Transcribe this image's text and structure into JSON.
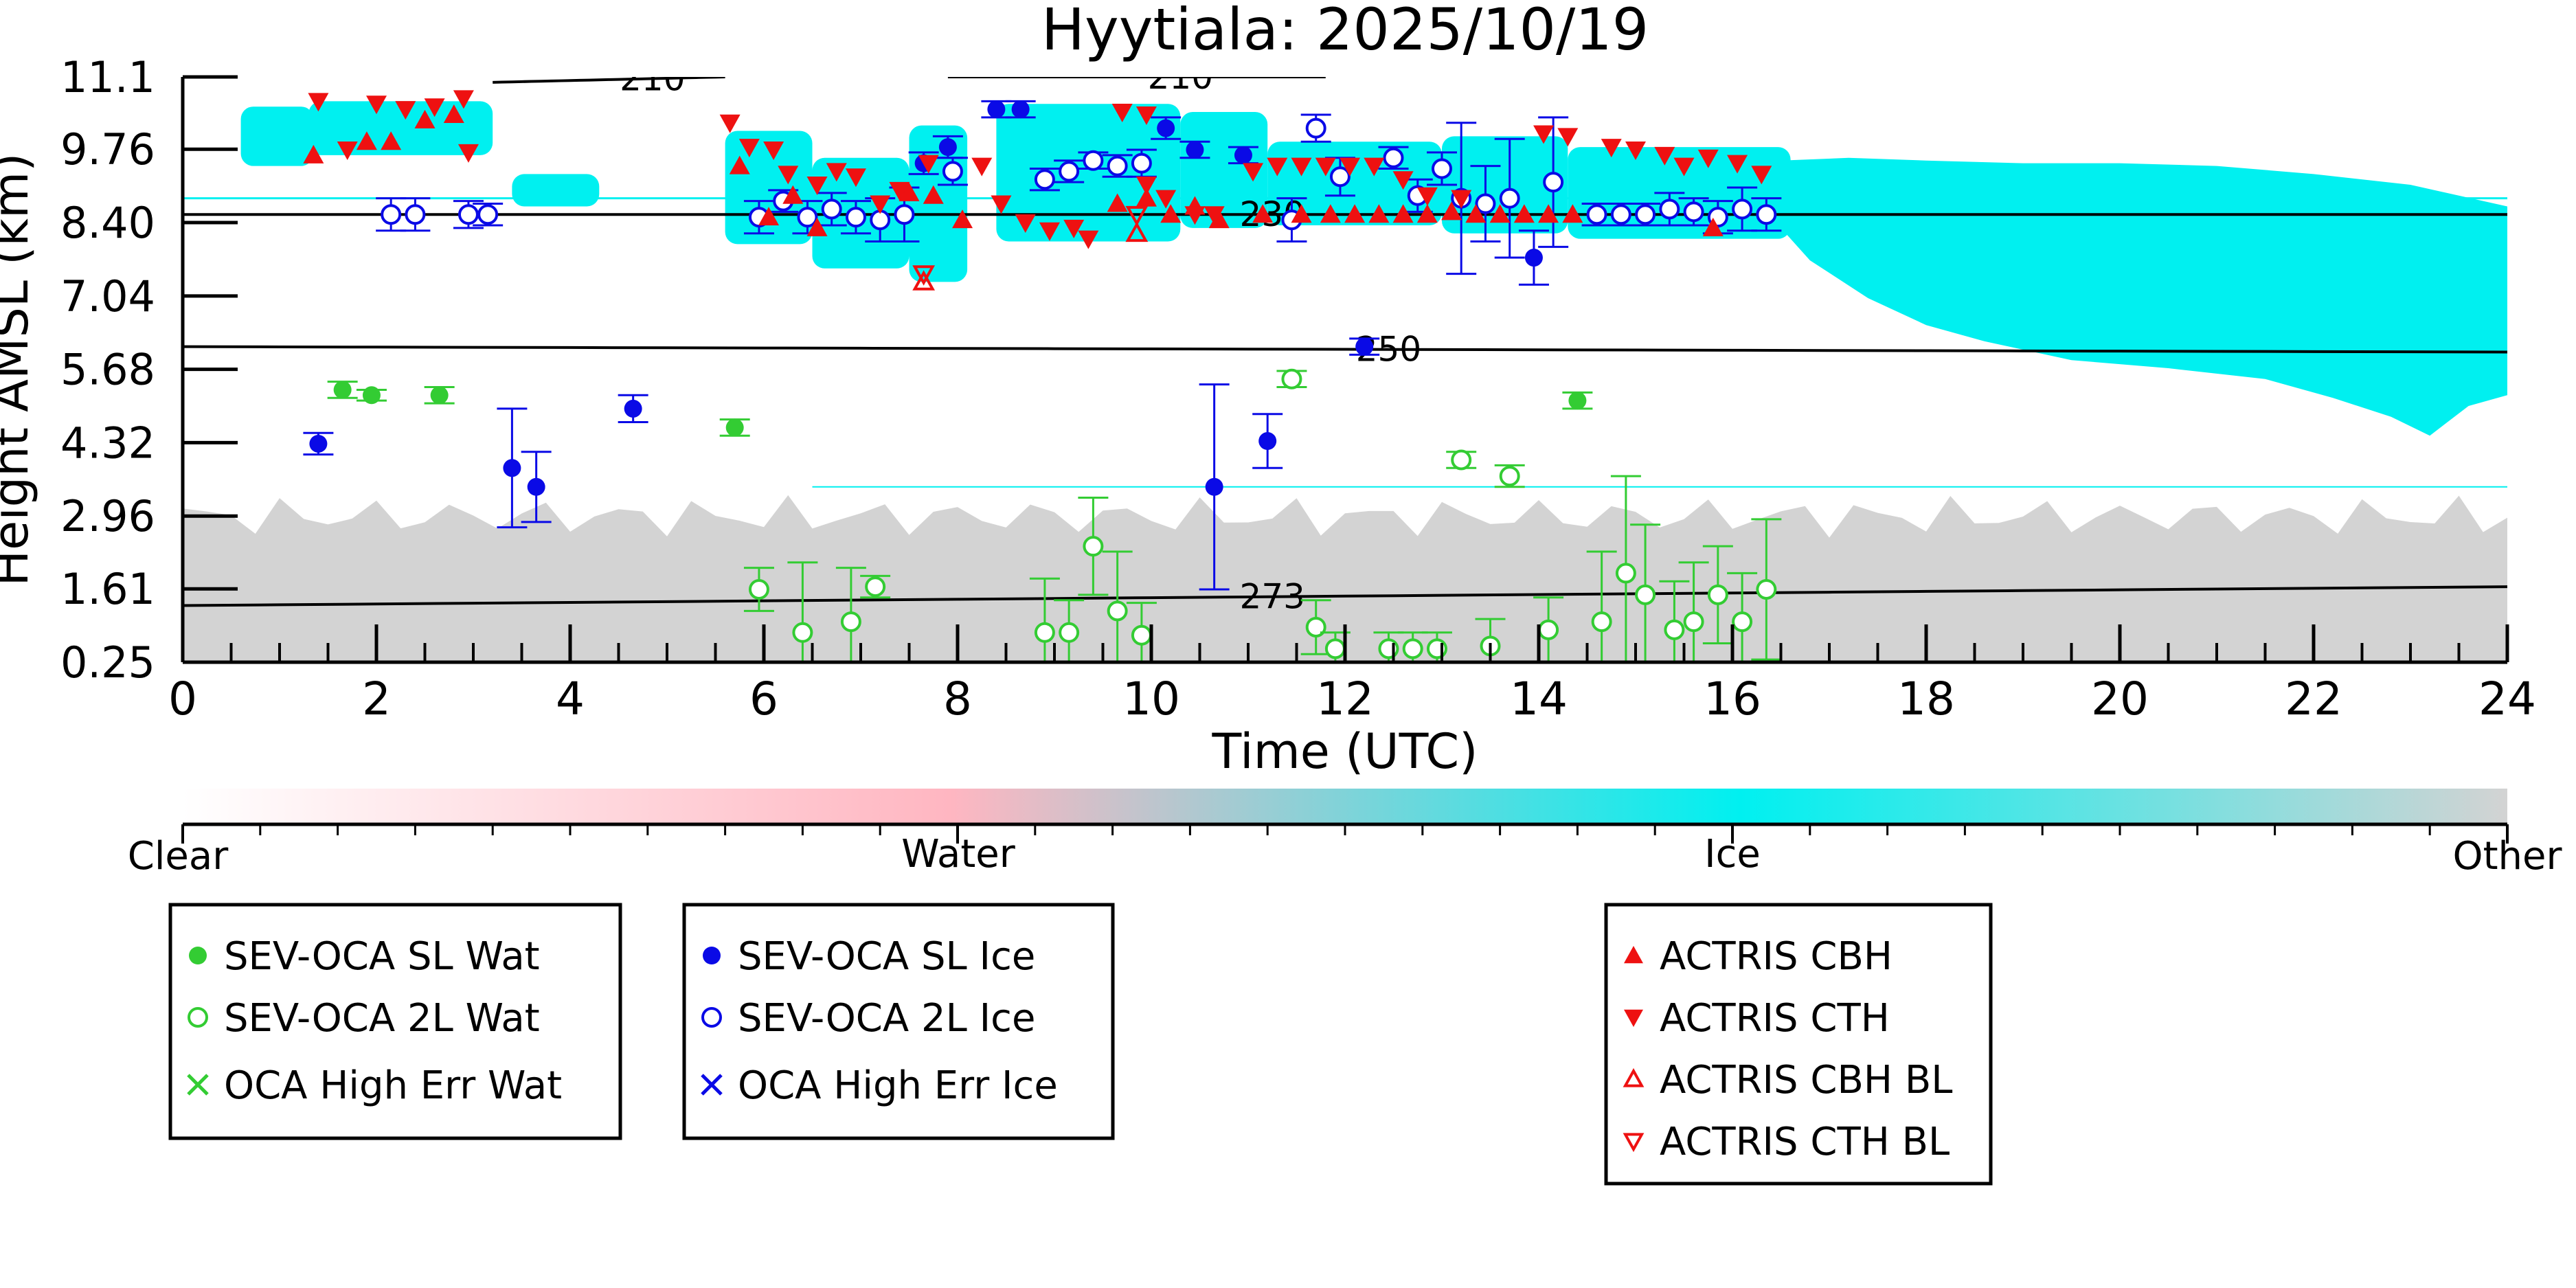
{
  "chart_data": {
    "type": "scatter",
    "title": "Hyytiala: 2025/10/19",
    "xlabel": "Time (UTC)",
    "ylabel": "Height AMSL (km)",
    "xlim": [
      0,
      24
    ],
    "ylim": [
      0.25,
      11.1
    ],
    "x_ticks": [
      "0",
      "2",
      "4",
      "6",
      "8",
      "10",
      "12",
      "14",
      "16",
      "18",
      "20",
      "22",
      "24"
    ],
    "y_ticks": [
      "0.25",
      "1.61",
      "2.96",
      "4.32",
      "5.68",
      "7.04",
      "8.40",
      "9.76",
      "11.1"
    ],
    "grid": false,
    "colorbar": {
      "labels": [
        "Clear",
        "Water",
        "Ice",
        "Other"
      ],
      "colors": [
        "#ffffff",
        "#ffb6c1",
        "#00f0f0",
        "#d3d3d3"
      ]
    },
    "background_regions": [
      {
        "category": "Other",
        "description_color": "#d3d3d3",
        "x_range": [
          0,
          24
        ],
        "top_km": [
          2.9,
          3.5
        ]
      },
      {
        "category": "Ice",
        "description_color": "#00f0f0",
        "x_range": [
          0.6,
          24
        ],
        "bottom_km": [
          4.3,
          9.5
        ]
      }
    ],
    "isotherms": [
      {
        "label": "210",
        "x": [
          3.2,
          5.6
        ],
        "y": [
          11.0,
          11.1
        ]
      },
      {
        "label": "210",
        "x": [
          7.9,
          11.8
        ],
        "y": [
          11.1,
          11.1
        ]
      },
      {
        "label": "230",
        "x": [
          0,
          24
        ],
        "y": [
          8.55,
          8.55
        ]
      },
      {
        "label": "250",
        "x": [
          0,
          24
        ],
        "y": [
          6.1,
          6.0
        ]
      },
      {
        "label": "273",
        "x": [
          0,
          24
        ],
        "y": [
          1.3,
          1.65
        ]
      }
    ],
    "legends": [
      {
        "entries": [
          "SEV-OCA SL Wat",
          "SEV-OCA 2L Wat",
          "OCA High Err Wat"
        ],
        "colors": [
          "#33cc33",
          "#33cc33",
          "#33cc33"
        ],
        "markers": [
          "filled-circle",
          "open-circle",
          "x"
        ]
      },
      {
        "entries": [
          "SEV-OCA SL Ice",
          "SEV-OCA 2L Ice",
          "OCA High Err Ice"
        ],
        "colors": [
          "#0a0ae6",
          "#0a0ae6",
          "#0a0ae6"
        ],
        "markers": [
          "filled-circle",
          "open-circle",
          "x"
        ]
      },
      {
        "entries": [
          "ACTRIS CBH",
          "ACTRIS CTH",
          "ACTRIS CBH BL",
          "ACTRIS CTH BL"
        ],
        "colors": [
          "#ee1111",
          "#ee1111",
          "#ee1111",
          "#ee1111"
        ],
        "markers": [
          "triangle-up",
          "triangle-down",
          "open-triangle-up",
          "open-triangle-down"
        ]
      }
    ],
    "series": [
      {
        "name": "SEV-OCA SL Wat",
        "points": [
          [
            1.65,
            5.3,
            0.15
          ],
          [
            1.95,
            5.2,
            0.1
          ],
          [
            2.65,
            5.2,
            0.15
          ],
          [
            5.7,
            4.6,
            0.15
          ],
          [
            14.4,
            5.1,
            0.15
          ]
        ]
      },
      {
        "name": "SEV-OCA 2L Wat",
        "points": [
          [
            5.95,
            1.6,
            0.4
          ],
          [
            6.4,
            0.8,
            1.3
          ],
          [
            6.9,
            1.0,
            1.0
          ],
          [
            7.15,
            1.65,
            0.2
          ],
          [
            8.9,
            0.8,
            1.0
          ],
          [
            9.15,
            0.8,
            0.6
          ],
          [
            9.4,
            2.4,
            0.9
          ],
          [
            9.65,
            1.2,
            1.1
          ],
          [
            9.9,
            0.75,
            0.6
          ],
          [
            11.45,
            5.5,
            0.15
          ],
          [
            11.7,
            0.9,
            0.5
          ],
          [
            11.9,
            0.5,
            0.3
          ],
          [
            12.45,
            0.5,
            0.3
          ],
          [
            12.7,
            0.5,
            0.3
          ],
          [
            12.95,
            0.5,
            0.3
          ],
          [
            13.2,
            4.0,
            0.15
          ],
          [
            13.5,
            0.55,
            0.5
          ],
          [
            13.7,
            3.7,
            0.2
          ],
          [
            14.1,
            0.85,
            0.6
          ],
          [
            14.65,
            1.0,
            1.3
          ],
          [
            14.9,
            1.9,
            1.8
          ],
          [
            15.1,
            1.5,
            1.3
          ],
          [
            15.4,
            0.85,
            0.9
          ],
          [
            15.6,
            1.0,
            1.1
          ],
          [
            15.85,
            1.5,
            0.9
          ],
          [
            16.1,
            1.0,
            0.9
          ],
          [
            16.35,
            1.6,
            1.3
          ]
        ]
      },
      {
        "name": "SEV-OCA SL Ice",
        "points": [
          [
            1.4,
            4.3,
            0.2
          ],
          [
            3.4,
            3.85,
            1.1
          ],
          [
            3.65,
            3.5,
            0.65
          ],
          [
            4.65,
            4.95,
            0.25
          ],
          [
            7.65,
            9.5,
            0.2
          ],
          [
            7.9,
            9.8,
            0.2
          ],
          [
            8.4,
            10.5,
            0.15
          ],
          [
            8.65,
            10.5,
            0.15
          ],
          [
            10.15,
            10.15,
            0.2
          ],
          [
            10.45,
            9.75,
            0.15
          ],
          [
            10.95,
            9.65,
            0.15
          ],
          [
            10.65,
            3.5,
            1.9
          ],
          [
            11.2,
            4.35,
            0.5
          ],
          [
            12.2,
            6.1,
            0.15
          ],
          [
            13.95,
            7.75,
            0.5
          ]
        ]
      },
      {
        "name": "SEV-OCA 2L Ice",
        "points": [
          [
            2.15,
            8.55,
            0.3
          ],
          [
            2.4,
            8.55,
            0.3
          ],
          [
            2.95,
            8.55,
            0.25
          ],
          [
            3.15,
            8.55,
            0.2
          ],
          [
            5.95,
            8.5,
            0.3
          ],
          [
            6.2,
            8.8,
            0.2
          ],
          [
            6.45,
            8.5,
            0.3
          ],
          [
            6.7,
            8.65,
            0.3
          ],
          [
            6.95,
            8.5,
            0.3
          ],
          [
            7.2,
            8.45,
            0.4
          ],
          [
            7.45,
            8.55,
            0.5
          ],
          [
            7.95,
            9.35,
            0.25
          ],
          [
            8.9,
            9.2,
            0.2
          ],
          [
            9.15,
            9.35,
            0.2
          ],
          [
            9.4,
            9.55,
            0.15
          ],
          [
            9.65,
            9.45,
            0.2
          ],
          [
            9.9,
            9.5,
            0.25
          ],
          [
            11.45,
            8.45,
            0.4
          ],
          [
            11.7,
            10.15,
            0.25
          ],
          [
            11.95,
            9.25,
            0.35
          ],
          [
            12.5,
            9.6,
            0.2
          ],
          [
            12.75,
            8.9,
            0.3
          ],
          [
            13.0,
            9.4,
            0.3
          ],
          [
            13.2,
            8.85,
            1.4
          ],
          [
            13.45,
            8.75,
            0.7
          ],
          [
            13.7,
            8.85,
            1.1
          ],
          [
            14.15,
            9.15,
            1.2
          ],
          [
            14.6,
            8.55,
            0.2
          ],
          [
            14.85,
            8.55,
            0.2
          ],
          [
            15.1,
            8.55,
            0.2
          ],
          [
            15.35,
            8.65,
            0.3
          ],
          [
            15.6,
            8.6,
            0.25
          ],
          [
            15.85,
            8.5,
            0.3
          ],
          [
            16.1,
            8.65,
            0.4
          ],
          [
            16.35,
            8.55,
            0.3
          ]
        ]
      },
      {
        "name": "ACTRIS CBH",
        "points": [
          [
            1.35,
            9.65
          ],
          [
            1.9,
            9.9
          ],
          [
            2.15,
            9.9
          ],
          [
            2.5,
            10.3
          ],
          [
            2.8,
            10.4
          ],
          [
            5.75,
            9.45
          ],
          [
            6.05,
            8.5
          ],
          [
            6.3,
            8.9
          ],
          [
            6.55,
            8.3
          ],
          [
            7.5,
            8.95
          ],
          [
            7.75,
            8.9
          ],
          [
            8.05,
            8.45
          ],
          [
            9.65,
            8.75
          ],
          [
            9.95,
            8.85
          ],
          [
            10.2,
            8.55
          ],
          [
            10.45,
            8.7
          ],
          [
            10.7,
            8.45
          ],
          [
            11.15,
            8.55
          ],
          [
            11.55,
            8.55
          ],
          [
            11.85,
            8.55
          ],
          [
            12.1,
            8.55
          ],
          [
            12.35,
            8.55
          ],
          [
            12.6,
            8.55
          ],
          [
            12.85,
            8.55
          ],
          [
            13.1,
            8.6
          ],
          [
            13.35,
            8.55
          ],
          [
            13.6,
            8.55
          ],
          [
            13.85,
            8.55
          ],
          [
            14.1,
            8.55
          ],
          [
            14.35,
            8.55
          ],
          [
            15.8,
            8.3
          ]
        ]
      },
      {
        "name": "ACTRIS CTH",
        "points": [
          [
            1.4,
            10.65
          ],
          [
            1.7,
            9.75
          ],
          [
            2.0,
            10.6
          ],
          [
            2.3,
            10.5
          ],
          [
            2.6,
            10.55
          ],
          [
            2.9,
            10.7
          ],
          [
            2.95,
            9.7
          ],
          [
            5.65,
            10.25
          ],
          [
            5.85,
            9.8
          ],
          [
            6.1,
            9.75
          ],
          [
            6.25,
            9.3
          ],
          [
            6.55,
            9.1
          ],
          [
            6.75,
            9.35
          ],
          [
            6.95,
            9.25
          ],
          [
            7.2,
            8.75
          ],
          [
            7.4,
            9.0
          ],
          [
            7.7,
            9.5
          ],
          [
            8.25,
            9.45
          ],
          [
            8.45,
            8.75
          ],
          [
            8.7,
            8.4
          ],
          [
            8.95,
            8.25
          ],
          [
            9.2,
            8.3
          ],
          [
            9.35,
            8.1
          ],
          [
            9.7,
            10.45
          ],
          [
            9.95,
            10.4
          ],
          [
            9.95,
            9.1
          ],
          [
            10.15,
            8.85
          ],
          [
            10.45,
            8.55
          ],
          [
            10.65,
            8.55
          ],
          [
            11.05,
            9.35
          ],
          [
            11.3,
            9.45
          ],
          [
            11.55,
            9.45
          ],
          [
            11.8,
            9.45
          ],
          [
            12.05,
            9.45
          ],
          [
            12.3,
            9.45
          ],
          [
            12.6,
            9.2
          ],
          [
            12.85,
            8.9
          ],
          [
            13.2,
            8.85
          ],
          [
            14.05,
            10.05
          ],
          [
            14.3,
            10.0
          ],
          [
            14.75,
            9.8
          ],
          [
            15.0,
            9.75
          ],
          [
            15.3,
            9.65
          ],
          [
            15.5,
            9.45
          ],
          [
            15.75,
            9.6
          ],
          [
            16.05,
            9.5
          ],
          [
            16.3,
            9.3
          ]
        ]
      },
      {
        "name": "ACTRIS CBH BL",
        "points": [
          [
            7.65,
            7.3
          ],
          [
            9.85,
            8.2
          ]
        ]
      },
      {
        "name": "ACTRIS CTH BL",
        "points": [
          [
            7.65,
            7.45
          ],
          [
            9.85,
            8.55
          ]
        ]
      }
    ]
  }
}
